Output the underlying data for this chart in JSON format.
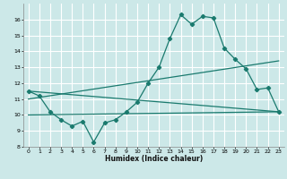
{
  "title": "",
  "xlabel": "Humidex (Indice chaleur)",
  "ylabel": "",
  "bg_color": "#cce8e8",
  "grid_color": "#ffffff",
  "line_color": "#1a7a6e",
  "xlim": [
    -0.5,
    23.5
  ],
  "ylim": [
    8,
    17
  ],
  "yticks": [
    8,
    9,
    10,
    11,
    12,
    13,
    14,
    15,
    16
  ],
  "xticks": [
    0,
    1,
    2,
    3,
    4,
    5,
    6,
    7,
    8,
    9,
    10,
    11,
    12,
    13,
    14,
    15,
    16,
    17,
    18,
    19,
    20,
    21,
    22,
    23
  ],
  "line1": {
    "x": [
      0,
      1,
      2,
      3,
      4,
      5,
      6,
      7,
      8,
      9,
      10,
      11,
      12,
      13,
      14,
      15,
      16,
      17,
      18,
      19,
      20,
      21,
      22,
      23
    ],
    "y": [
      11.5,
      11.2,
      10.2,
      9.7,
      9.3,
      9.6,
      8.3,
      9.5,
      9.7,
      10.2,
      10.8,
      12.0,
      13.0,
      14.8,
      16.3,
      15.7,
      16.2,
      16.1,
      14.2,
      13.5,
      12.9,
      11.6,
      11.7,
      10.2
    ]
  },
  "line2": {
    "x": [
      0,
      23
    ],
    "y": [
      11.5,
      10.2
    ]
  },
  "line3": {
    "x": [
      0,
      23
    ],
    "y": [
      11.0,
      13.4
    ]
  },
  "line4": {
    "x": [
      0,
      23
    ],
    "y": [
      10.0,
      10.2
    ]
  }
}
